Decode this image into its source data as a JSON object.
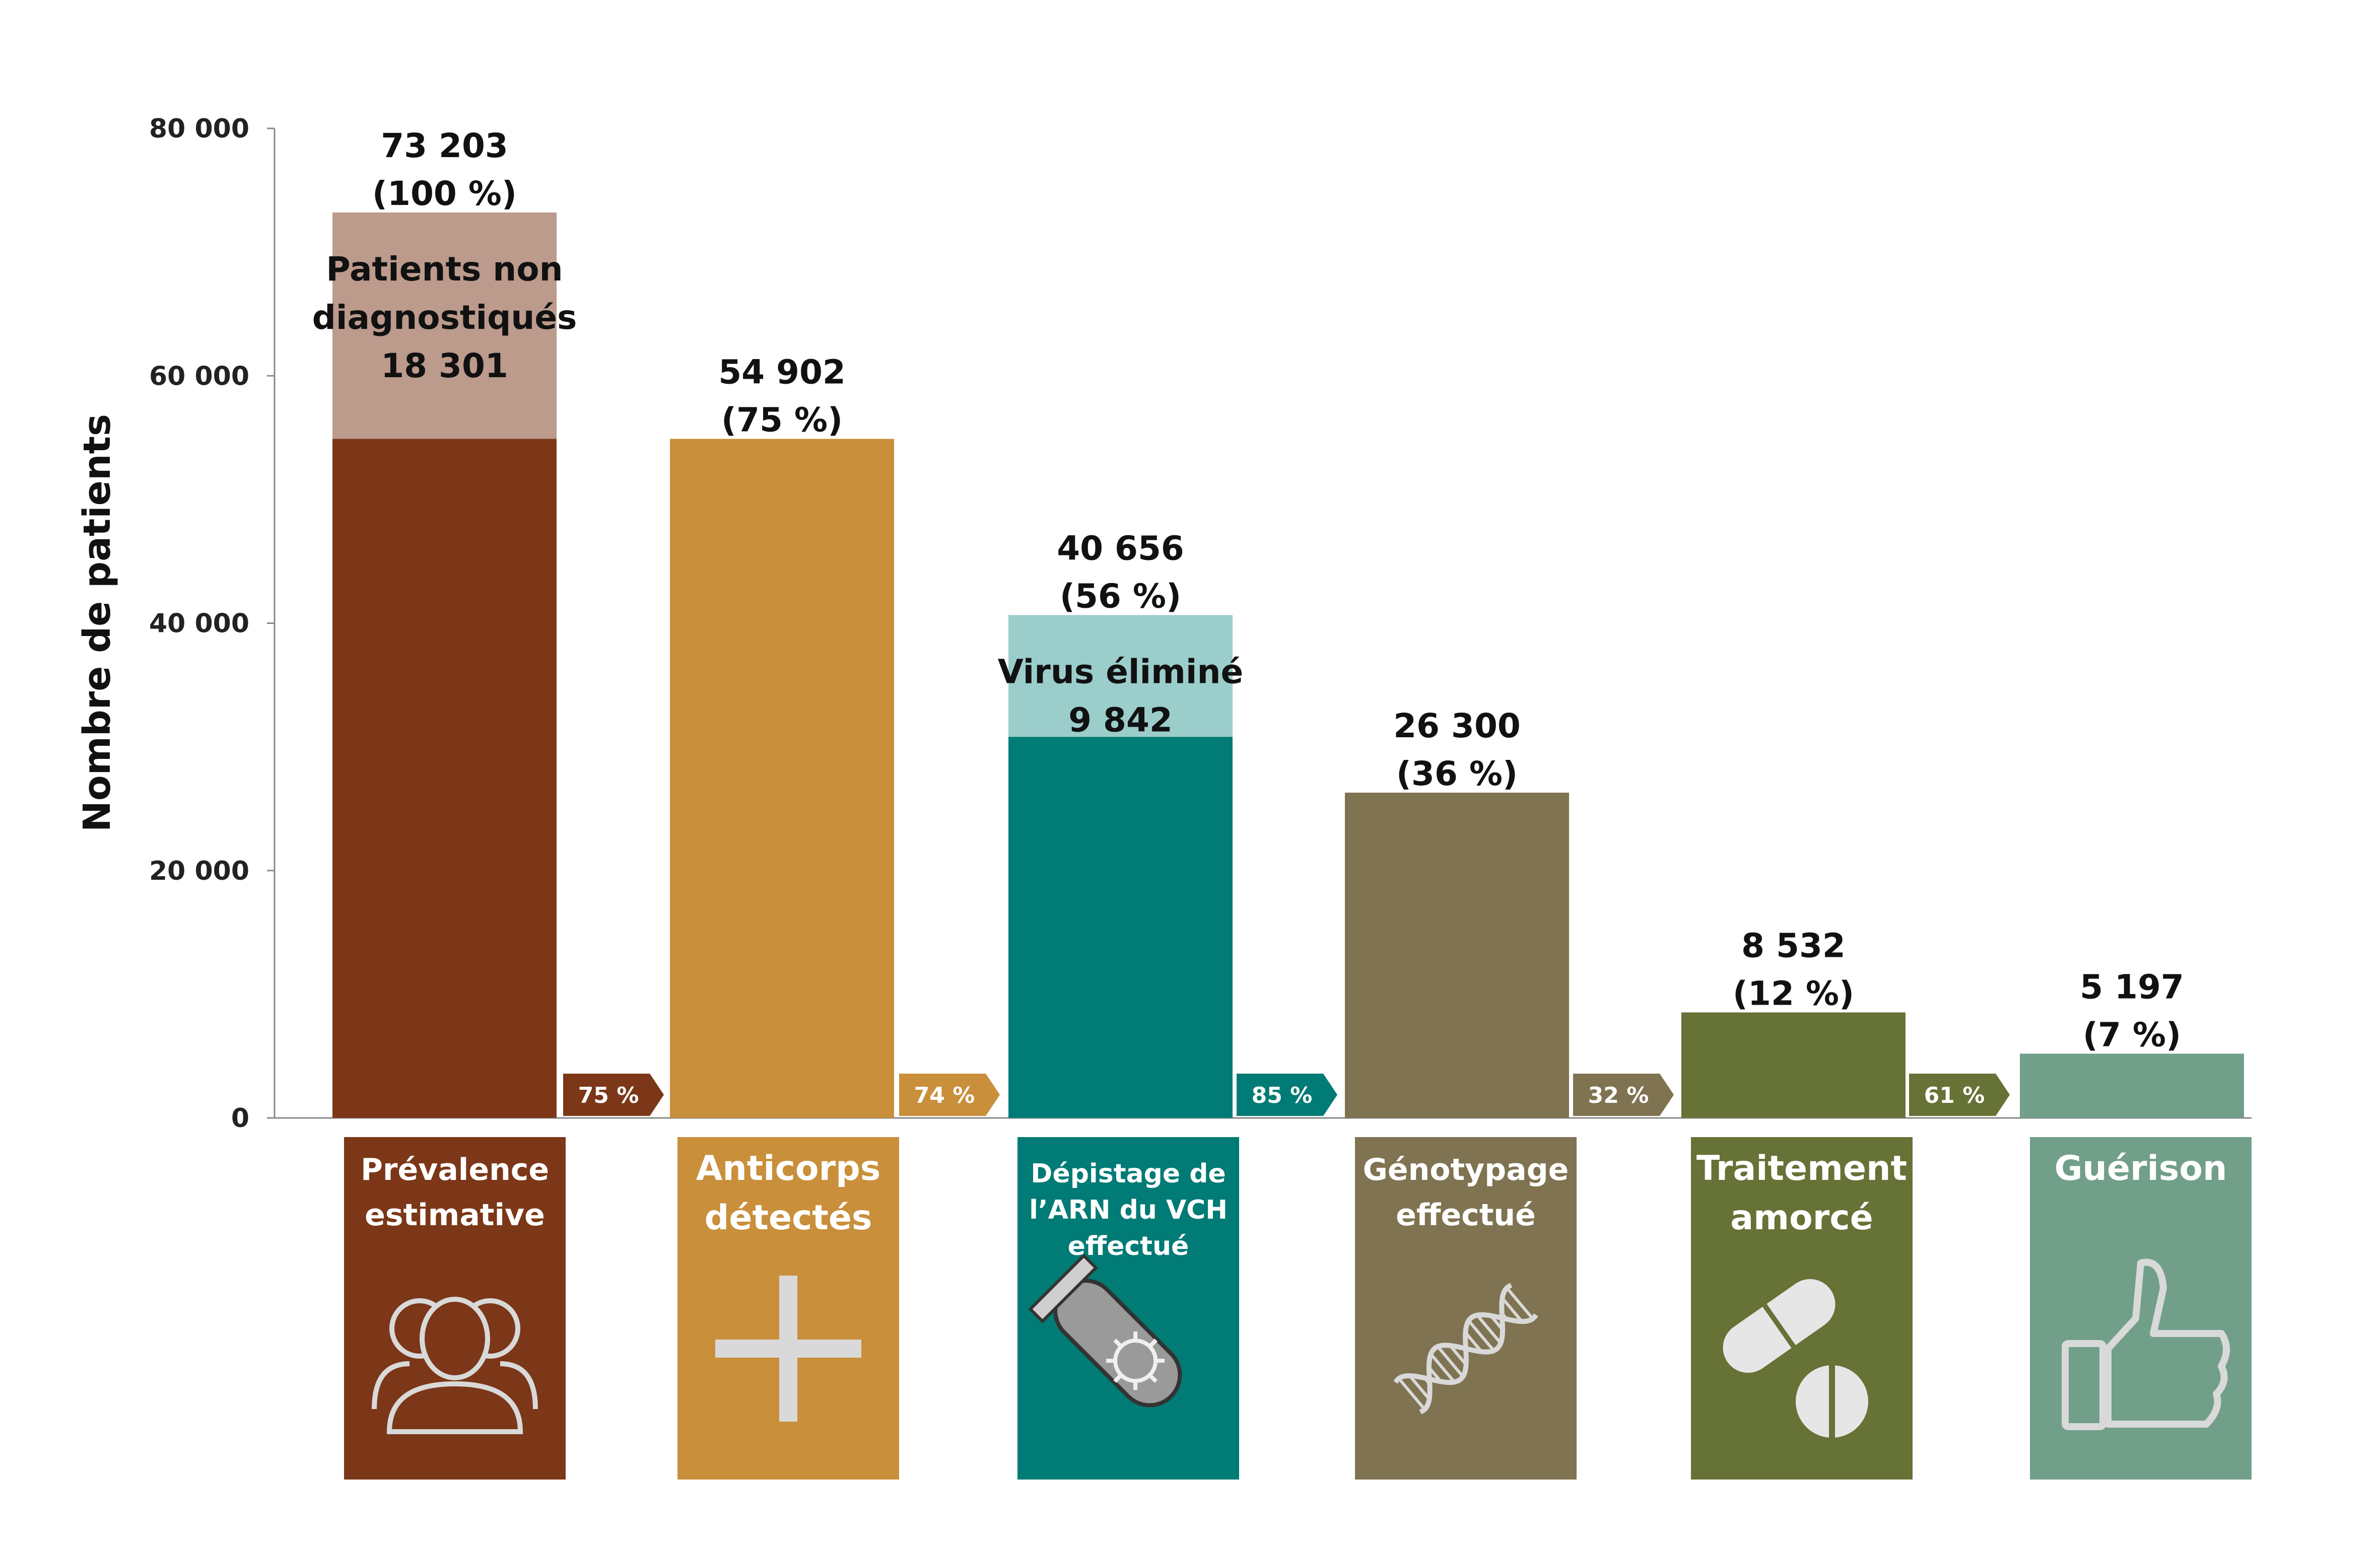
{
  "chart_data": {
    "type": "bar",
    "ylabel": "Nombre de patients",
    "ylim": [
      0,
      80000
    ],
    "yticks": [
      0,
      20000,
      40000,
      60000,
      80000
    ],
    "ytick_labels": [
      "0",
      "20 000",
      "40 000",
      "60 000",
      "80 000"
    ],
    "categories": [
      "Prévalence estimative",
      "Anticorps détectés",
      "Dépistage de l’ARN du VCH effectué",
      "Génotypage effectué",
      "Traitement amorcé",
      "Guérison"
    ],
    "values": [
      73203,
      54902,
      40656,
      26300,
      8532,
      5197
    ],
    "value_labels": [
      "73 203",
      "54 902",
      "40 656",
      "26 300",
      "8 532",
      "5 197"
    ],
    "percent_labels": [
      "(100 %)",
      "(75 %)",
      "(56 %)",
      "(36 %)",
      "(12 %)",
      "(7 %)"
    ],
    "segments": [
      {
        "category": "Prévalence estimative",
        "base_value": 54902,
        "top_value": 18301,
        "top_label_lines": [
          "Patients non",
          "diagnostiqués",
          "18 301"
        ]
      },
      {
        "category": "Dépistage de l’ARN du VCH effectué",
        "base_value": 30814,
        "top_value": 9842,
        "top_label_lines": [
          "Virus éliminé",
          "9 842"
        ]
      }
    ],
    "transitions": [
      "75 %",
      "74 %",
      "85 %",
      "32 %",
      "61 %"
    ],
    "colors": [
      "#7B3718",
      "#C98F3B",
      "#007B75",
      "#7F7351",
      "#667236",
      "#719F8A"
    ],
    "segment_top_colors": [
      "#BC9A8C",
      null,
      "#9BCDCB",
      null,
      null,
      null
    ],
    "stages": [
      {
        "title_lines": [
          "Prévalence",
          "estimative"
        ],
        "icon": "people-icon"
      },
      {
        "title_lines": [
          "Anticorps",
          "détectés"
        ],
        "icon": "plus-icon"
      },
      {
        "title_lines": [
          "Dépistage de",
          "l’ARN du VCH",
          "effectué"
        ],
        "icon": "test-tube-icon"
      },
      {
        "title_lines": [
          "Génotypage",
          "effectué"
        ],
        "icon": "dna-icon"
      },
      {
        "title_lines": [
          "Traitement",
          "amorcé"
        ],
        "icon": "pills-icon"
      },
      {
        "title_lines": [
          "Guérison"
        ],
        "icon": "thumbs-up-icon"
      }
    ]
  }
}
